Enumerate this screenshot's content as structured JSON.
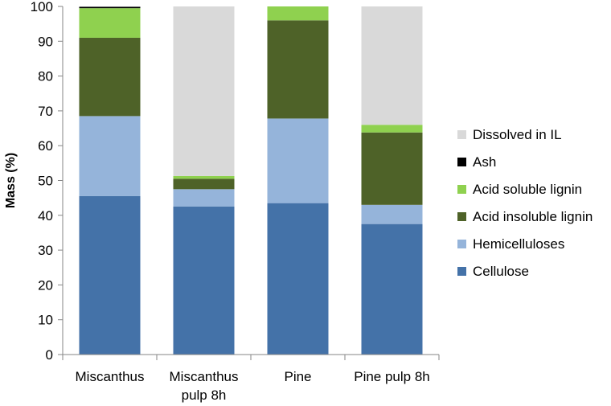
{
  "chart_data": {
    "type": "bar",
    "stacked": true,
    "categories": [
      [
        "Miscanthus"
      ],
      [
        "Miscanthus",
        "pulp 8h"
      ],
      [
        "Pine"
      ],
      [
        "Pine pulp 8h"
      ]
    ],
    "ylabel": "Mass (%)",
    "xlabel": "",
    "ylim": [
      0,
      100
    ],
    "yticks": [
      0,
      10,
      20,
      30,
      40,
      50,
      60,
      70,
      80,
      90,
      100
    ],
    "grid": false,
    "legend_position": "right",
    "series": [
      {
        "name": "Cellulose",
        "color": "#4472a8",
        "values": [
          45.5,
          42.5,
          43.5,
          37.5
        ]
      },
      {
        "name": "Hemicelluloses",
        "color": "#95b4da",
        "values": [
          23.0,
          5.0,
          24.3,
          5.5
        ]
      },
      {
        "name": "Acid insoluble lignin",
        "color": "#4e6228",
        "values": [
          22.5,
          3.0,
          28.2,
          20.8
        ]
      },
      {
        "name": "Acid soluble lignin",
        "color": "#8fd14f",
        "values": [
          8.5,
          0.8,
          4.0,
          2.2
        ]
      },
      {
        "name": "Ash",
        "color": "#000000",
        "values": [
          0.4,
          0.0,
          0.0,
          0.0
        ]
      },
      {
        "name": "Dissolved in IL",
        "color": "#d9d9d9",
        "values": [
          0.1,
          48.7,
          0.0,
          34.0
        ]
      }
    ]
  }
}
